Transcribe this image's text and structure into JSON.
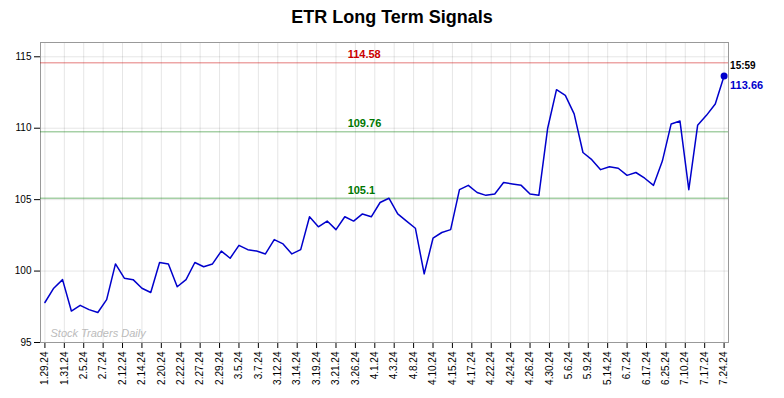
{
  "chart_data": {
    "type": "line",
    "title": "ETR Long Term Signals",
    "color": "#0000cc",
    "marker": "last",
    "grid": true,
    "x": [
      0,
      1,
      2,
      3,
      4,
      5,
      6,
      7,
      8,
      9,
      10,
      11,
      12,
      13,
      14,
      15,
      16,
      17,
      18,
      19,
      20,
      21,
      22,
      23,
      24,
      25,
      26,
      27,
      28,
      29,
      30,
      31,
      32,
      33,
      34,
      35,
      36,
      37,
      38,
      39,
      40,
      41,
      42,
      43,
      44,
      45,
      46,
      47,
      48,
      49,
      50,
      51,
      52,
      53,
      54,
      55,
      56,
      57,
      58,
      59,
      60,
      61,
      62,
      63,
      64,
      65,
      66,
      67,
      68,
      69,
      70,
      71,
      72,
      73,
      74,
      75,
      76,
      77
    ],
    "values": [
      97.8,
      98.8,
      99.4,
      97.2,
      97.6,
      97.3,
      97.1,
      98.0,
      100.5,
      99.5,
      99.4,
      98.8,
      98.5,
      100.6,
      100.5,
      98.9,
      99.4,
      100.6,
      100.3,
      100.5,
      101.4,
      100.9,
      101.8,
      101.5,
      101.4,
      101.2,
      102.2,
      101.9,
      101.2,
      101.5,
      103.8,
      103.1,
      103.5,
      102.9,
      103.8,
      103.5,
      104.0,
      103.8,
      104.8,
      105.1,
      104.0,
      103.5,
      103.0,
      99.8,
      102.3,
      102.7,
      102.9,
      105.7,
      106.0,
      105.5,
      105.3,
      105.4,
      106.2,
      106.1,
      106.0,
      105.4,
      105.3,
      110.0,
      112.7,
      112.3,
      111.0,
      108.3,
      107.8,
      107.1,
      107.3,
      107.2,
      106.7,
      106.9,
      106.5,
      106.0,
      107.7,
      110.3,
      110.5,
      105.7,
      110.2,
      110.9,
      111.7,
      113.66
    ],
    "xlim": [
      -0.5,
      77.5
    ],
    "xticks": [
      {
        "value": 0,
        "label": "1.29.24"
      },
      {
        "value": 2.2,
        "label": "1.31.24"
      },
      {
        "value": 4.4,
        "label": "2.5.24"
      },
      {
        "value": 6.6,
        "label": "2.7.24"
      },
      {
        "value": 8.8,
        "label": "2.12.24"
      },
      {
        "value": 11,
        "label": "2.14.24"
      },
      {
        "value": 13.2,
        "label": "2.20.24"
      },
      {
        "value": 15.4,
        "label": "2.22.24"
      },
      {
        "value": 17.6,
        "label": "2.27.24"
      },
      {
        "value": 19.8,
        "label": "2.29.24"
      },
      {
        "value": 22,
        "label": "3.5.24"
      },
      {
        "value": 24.2,
        "label": "3.7.24"
      },
      {
        "value": 26.4,
        "label": "3.12.24"
      },
      {
        "value": 28.6,
        "label": "3.14.24"
      },
      {
        "value": 30.8,
        "label": "3.19.24"
      },
      {
        "value": 33,
        "label": "3.21.24"
      },
      {
        "value": 35.2,
        "label": "3.26.24"
      },
      {
        "value": 37.4,
        "label": "4.1.24"
      },
      {
        "value": 39.6,
        "label": "4.3.24"
      },
      {
        "value": 41.8,
        "label": "4.8.24"
      },
      {
        "value": 44,
        "label": "4.10.24"
      },
      {
        "value": 46.2,
        "label": "4.15.24"
      },
      {
        "value": 48.4,
        "label": "4.17.24"
      },
      {
        "value": 50.6,
        "label": "4.22.24"
      },
      {
        "value": 52.8,
        "label": "4.24.24"
      },
      {
        "value": 55,
        "label": "4.26.24"
      },
      {
        "value": 57.2,
        "label": "4.30.24"
      },
      {
        "value": 59.4,
        "label": "5.6.24"
      },
      {
        "value": 61.6,
        "label": "5.9.24"
      },
      {
        "value": 63.8,
        "label": "5.14.24"
      },
      {
        "value": 66,
        "label": "6.7.24"
      },
      {
        "value": 68.2,
        "label": "6.17.24"
      },
      {
        "value": 70.4,
        "label": "6.25.24"
      },
      {
        "value": 72.6,
        "label": "7.10.24"
      },
      {
        "value": 74.8,
        "label": "7.17.24"
      },
      {
        "value": 77,
        "label": "7.24.24"
      }
    ],
    "ylim": [
      95,
      116
    ],
    "yticks": [
      95,
      100,
      105,
      110,
      115
    ],
    "reference_lines": [
      {
        "value": 114.58,
        "label": "114.58",
        "color": "#cc0000"
      },
      {
        "value": 109.76,
        "label": "109.76",
        "color": "#007700"
      },
      {
        "value": 105.1,
        "label": "105.1",
        "color": "#007700"
      }
    ],
    "last_time_label": "15:59",
    "last_value_label": "113.66",
    "watermark": "Stock Traders Daily"
  }
}
